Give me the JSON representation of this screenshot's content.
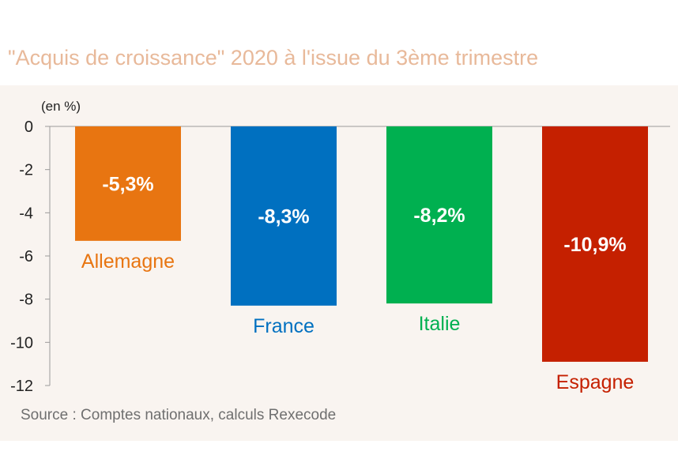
{
  "title": "\"Acquis de croissance\" 2020 à l'issue du 3ème trimestre",
  "source": "Source : Comptes nationaux, calculs Rexecode",
  "chart_data": {
    "type": "bar",
    "unit_label": "(en %)",
    "categories": [
      "Allemagne",
      "France",
      "Italie",
      "Espagne"
    ],
    "values": [
      -5.3,
      -8.3,
      -8.2,
      -10.9
    ],
    "value_labels": [
      "-5,3%",
      "-8,3%",
      "-8,2%",
      "-10,9%"
    ],
    "colors": [
      "#e87511",
      "#0070c0",
      "#00b050",
      "#c52000"
    ],
    "y_ticks": [
      "0",
      "-2",
      "-4",
      "-6",
      "-8",
      "-10",
      "-12"
    ],
    "ylim": [
      -12,
      0
    ],
    "grid": false,
    "legend": "none"
  }
}
